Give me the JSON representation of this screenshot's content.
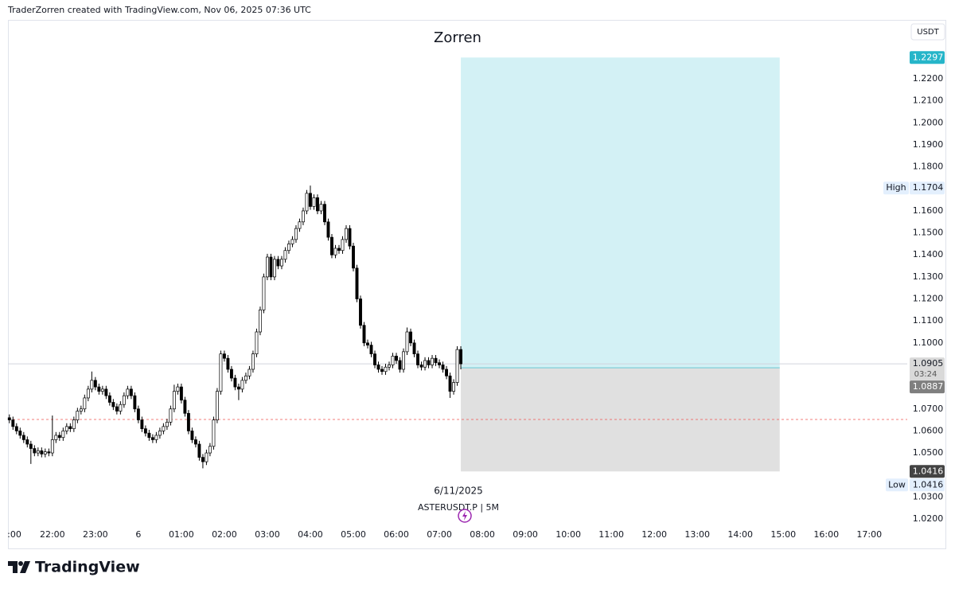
{
  "header": {
    "text": "TraderZorren created with TradingView.com, Nov 06, 2025 07:36 UTC"
  },
  "chart_data": {
    "type": "candlestick",
    "title": "Zorren",
    "currency": "USDT",
    "date_label": "6/11/2025",
    "symbol": "ASTERUSDT.P | 5M",
    "up_color": "#ffffff",
    "down_color": "#000000",
    "x": [
      -180,
      -175,
      -170,
      -165,
      -160,
      -155,
      -150,
      -145,
      -140,
      -135,
      -130,
      -125,
      -120,
      -115,
      -110,
      -105,
      -100,
      -95,
      -90,
      -85,
      -80,
      -75,
      -70,
      -65,
      -60,
      -55,
      -50,
      -45,
      -40,
      -35,
      -30,
      -25,
      -20,
      -15,
      -10,
      -5,
      0,
      5,
      10,
      15,
      20,
      25,
      30,
      35,
      40,
      45,
      50,
      55,
      60,
      65,
      70,
      75,
      80,
      85,
      90,
      95,
      100,
      105,
      110,
      115,
      120,
      125,
      130,
      135,
      140,
      145,
      150,
      155,
      160,
      165,
      170,
      175,
      180,
      185,
      190,
      195,
      200,
      205,
      210,
      215,
      220,
      225,
      230,
      235,
      240,
      245,
      250,
      255,
      260,
      265,
      270,
      275,
      280,
      285,
      290,
      295,
      300,
      305,
      310,
      315,
      320,
      325,
      330,
      335,
      340,
      345,
      350,
      355,
      360,
      365,
      370,
      375,
      380,
      385,
      390,
      395,
      400,
      405,
      410,
      415,
      420,
      425,
      430,
      435,
      440,
      445,
      450
    ],
    "candles": [
      [
        1.066,
        1.0675,
        1.0635,
        1.065
      ],
      [
        1.065,
        1.0665,
        1.0605,
        1.062
      ],
      [
        1.062,
        1.0635,
        1.0585,
        1.06
      ],
      [
        1.06,
        1.0615,
        1.0565,
        1.058
      ],
      [
        1.058,
        1.0595,
        1.0545,
        1.056
      ],
      [
        1.056,
        1.0575,
        1.0525,
        1.054
      ],
      [
        1.054,
        1.0555,
        1.045,
        1.052
      ],
      [
        1.052,
        1.0535,
        1.0485,
        1.05
      ],
      [
        1.05,
        1.0525,
        1.0485,
        1.051
      ],
      [
        1.051,
        1.0525,
        1.048,
        1.0495
      ],
      [
        1.0495,
        1.052,
        1.048,
        1.0505
      ],
      [
        1.0505,
        1.052,
        1.0485,
        1.05
      ],
      [
        1.05,
        1.067,
        1.0485,
        1.056
      ],
      [
        1.056,
        1.0595,
        1.0545,
        1.058
      ],
      [
        1.058,
        1.0595,
        1.0555,
        1.057
      ],
      [
        1.057,
        1.0615,
        1.0555,
        1.06
      ],
      [
        1.06,
        1.0635,
        1.0585,
        1.062
      ],
      [
        1.062,
        1.0635,
        1.0595,
        1.061
      ],
      [
        1.061,
        1.0665,
        1.0595,
        1.065
      ],
      [
        1.065,
        1.0705,
        1.0635,
        1.069
      ],
      [
        1.069,
        1.0715,
        1.0675,
        1.07
      ],
      [
        1.07,
        1.0765,
        1.0685,
        1.075
      ],
      [
        1.075,
        1.0805,
        1.0735,
        1.079
      ],
      [
        1.079,
        1.087,
        1.0775,
        1.083
      ],
      [
        1.083,
        1.0845,
        1.0785,
        1.08
      ],
      [
        1.08,
        1.0815,
        1.0765,
        1.078
      ],
      [
        1.078,
        1.0805,
        1.0765,
        1.079
      ],
      [
        1.079,
        1.0805,
        1.0745,
        1.076
      ],
      [
        1.076,
        1.0775,
        1.0715,
        1.073
      ],
      [
        1.073,
        1.0745,
        1.0695,
        1.071
      ],
      [
        1.071,
        1.0725,
        1.0675,
        1.069
      ],
      [
        1.069,
        1.0735,
        1.0675,
        1.072
      ],
      [
        1.072,
        1.0775,
        1.0705,
        1.076
      ],
      [
        1.076,
        1.0805,
        1.0745,
        1.079
      ],
      [
        1.079,
        1.0805,
        1.0745,
        1.076
      ],
      [
        1.076,
        1.0775,
        1.0685,
        1.07
      ],
      [
        1.07,
        1.0715,
        1.0635,
        1.065
      ],
      [
        1.065,
        1.0665,
        1.0595,
        1.061
      ],
      [
        1.061,
        1.0625,
        1.0575,
        1.059
      ],
      [
        1.059,
        1.0605,
        1.0555,
        1.057
      ],
      [
        1.057,
        1.0585,
        1.0545,
        1.056
      ],
      [
        1.056,
        1.0595,
        1.0545,
        1.058
      ],
      [
        1.058,
        1.0615,
        1.0565,
        1.06
      ],
      [
        1.06,
        1.0635,
        1.0585,
        1.062
      ],
      [
        1.062,
        1.0655,
        1.0605,
        1.064
      ],
      [
        1.064,
        1.0715,
        1.0625,
        1.07
      ],
      [
        1.07,
        1.081,
        1.0685,
        1.078
      ],
      [
        1.078,
        1.0815,
        1.0765,
        1.08
      ],
      [
        1.08,
        1.0815,
        1.0725,
        1.074
      ],
      [
        1.074,
        1.0755,
        1.0665,
        1.068
      ],
      [
        1.068,
        1.0695,
        1.0585,
        1.06
      ],
      [
        1.06,
        1.0615,
        1.0545,
        1.056
      ],
      [
        1.056,
        1.0575,
        1.0525,
        1.054
      ],
      [
        1.054,
        1.0555,
        1.0465,
        1.048
      ],
      [
        1.048,
        1.0495,
        1.043,
        1.046
      ],
      [
        1.046,
        1.0515,
        1.0445,
        1.05
      ],
      [
        1.05,
        1.0545,
        1.0485,
        1.053
      ],
      [
        1.053,
        1.0665,
        1.0515,
        1.065
      ],
      [
        1.065,
        1.0795,
        1.0635,
        1.078
      ],
      [
        1.078,
        1.0965,
        1.0765,
        1.095
      ],
      [
        1.095,
        1.0965,
        1.0915,
        1.093
      ],
      [
        1.093,
        1.0945,
        1.0865,
        1.088
      ],
      [
        1.088,
        1.0895,
        1.0825,
        1.084
      ],
      [
        1.084,
        1.0855,
        1.0785,
        1.08
      ],
      [
        1.08,
        1.0815,
        1.074,
        1.079
      ],
      [
        1.079,
        1.0845,
        1.0775,
        1.083
      ],
      [
        1.083,
        1.0865,
        1.0815,
        1.085
      ],
      [
        1.085,
        1.0895,
        1.0835,
        1.088
      ],
      [
        1.088,
        1.0965,
        1.0865,
        1.095
      ],
      [
        1.095,
        1.1065,
        1.0935,
        1.105
      ],
      [
        1.105,
        1.1165,
        1.1035,
        1.115
      ],
      [
        1.115,
        1.1315,
        1.1135,
        1.13
      ],
      [
        1.13,
        1.1405,
        1.1285,
        1.139
      ],
      [
        1.139,
        1.1405,
        1.1285,
        1.13
      ],
      [
        1.13,
        1.1395,
        1.1285,
        1.138
      ],
      [
        1.138,
        1.1395,
        1.1335,
        1.135
      ],
      [
        1.135,
        1.1395,
        1.1335,
        1.138
      ],
      [
        1.138,
        1.1435,
        1.1365,
        1.142
      ],
      [
        1.142,
        1.1465,
        1.1405,
        1.145
      ],
      [
        1.145,
        1.1485,
        1.1435,
        1.147
      ],
      [
        1.147,
        1.1535,
        1.1455,
        1.152
      ],
      [
        1.152,
        1.1565,
        1.1505,
        1.155
      ],
      [
        1.155,
        1.1615,
        1.1535,
        1.16
      ],
      [
        1.16,
        1.1695,
        1.1585,
        1.168
      ],
      [
        1.168,
        1.1715,
        1.1605,
        1.162
      ],
      [
        1.162,
        1.1675,
        1.1605,
        1.166
      ],
      [
        1.166,
        1.1675,
        1.1585,
        1.16
      ],
      [
        1.16,
        1.1645,
        1.1585,
        1.163
      ],
      [
        1.163,
        1.1645,
        1.1535,
        1.155
      ],
      [
        1.155,
        1.1565,
        1.1465,
        1.148
      ],
      [
        1.148,
        1.1495,
        1.1385,
        1.14
      ],
      [
        1.14,
        1.1445,
        1.1385,
        1.143
      ],
      [
        1.143,
        1.1445,
        1.1405,
        1.142
      ],
      [
        1.142,
        1.1485,
        1.1405,
        1.147
      ],
      [
        1.147,
        1.1535,
        1.1455,
        1.152
      ],
      [
        1.152,
        1.1535,
        1.1425,
        1.144
      ],
      [
        1.144,
        1.1455,
        1.1325,
        1.134
      ],
      [
        1.134,
        1.1355,
        1.1185,
        1.12
      ],
      [
        1.12,
        1.1215,
        1.1065,
        1.108
      ],
      [
        1.108,
        1.1095,
        1.0985,
        1.1
      ],
      [
        1.1,
        1.1015,
        1.0975,
        1.099
      ],
      [
        1.099,
        1.1005,
        1.0935,
        1.095
      ],
      [
        1.095,
        1.0965,
        1.0885,
        1.09
      ],
      [
        1.09,
        1.0915,
        1.0865,
        1.088
      ],
      [
        1.088,
        1.0895,
        1.0855,
        1.087
      ],
      [
        1.087,
        1.0905,
        1.0855,
        1.089
      ],
      [
        1.089,
        1.0915,
        1.0875,
        1.09
      ],
      [
        1.09,
        1.0955,
        1.0885,
        1.094
      ],
      [
        1.094,
        1.0955,
        1.0905,
        1.092
      ],
      [
        1.092,
        1.0935,
        1.0865,
        1.088
      ],
      [
        1.088,
        1.0975,
        1.0865,
        1.096
      ],
      [
        1.096,
        1.107,
        1.0945,
        1.105
      ],
      [
        1.105,
        1.1065,
        1.0985,
        1.1
      ],
      [
        1.1,
        1.1015,
        1.0935,
        1.095
      ],
      [
        1.095,
        1.0965,
        1.0885,
        1.09
      ],
      [
        1.09,
        1.0915,
        1.0875,
        1.089
      ],
      [
        1.089,
        1.0935,
        1.0875,
        1.092
      ],
      [
        1.092,
        1.0935,
        1.0885,
        1.09
      ],
      [
        1.09,
        1.0945,
        1.0885,
        1.093
      ],
      [
        1.093,
        1.0945,
        1.0895,
        1.091
      ],
      [
        1.091,
        1.0925,
        1.0885,
        1.09
      ],
      [
        1.09,
        1.0915,
        1.0865,
        1.088
      ],
      [
        1.088,
        1.0895,
        1.0835,
        1.085
      ],
      [
        1.085,
        1.0865,
        1.075,
        1.078
      ],
      [
        1.078,
        1.0835,
        1.0765,
        1.082
      ],
      [
        1.082,
        1.0985,
        1.0805,
        1.097
      ],
      [
        1.097,
        1.0985,
        1.088,
        1.0905
      ]
    ],
    "xlim": [
      -182,
      1073
    ],
    "xticks": [
      {
        "value": -180,
        "label": ":00"
      },
      {
        "value": -120,
        "label": "22:00"
      },
      {
        "value": -60,
        "label": "23:00"
      },
      {
        "value": 0,
        "label": "6"
      },
      {
        "value": 60,
        "label": "01:00"
      },
      {
        "value": 120,
        "label": "02:00"
      },
      {
        "value": 180,
        "label": "03:00"
      },
      {
        "value": 240,
        "label": "04:00"
      },
      {
        "value": 300,
        "label": "05:00"
      },
      {
        "value": 360,
        "label": "06:00"
      },
      {
        "value": 420,
        "label": "07:00"
      },
      {
        "value": 480,
        "label": "08:00"
      },
      {
        "value": 540,
        "label": "09:00"
      },
      {
        "value": 600,
        "label": "10:00"
      },
      {
        "value": 660,
        "label": "11:00"
      },
      {
        "value": 720,
        "label": "12:00"
      },
      {
        "value": 780,
        "label": "13:00"
      },
      {
        "value": 840,
        "label": "14:00"
      },
      {
        "value": 900,
        "label": "15:00"
      },
      {
        "value": 960,
        "label": "16:00"
      },
      {
        "value": 1020,
        "label": "17:00"
      }
    ],
    "ylim": [
      1.0171,
      1.2468
    ],
    "yticks": [
      {
        "value": 1.02,
        "label": "1.0200"
      },
      {
        "value": 1.03,
        "label": "1.0300"
      },
      {
        "value": 1.05,
        "label": "1.0500"
      },
      {
        "value": 1.06,
        "label": "1.0600"
      },
      {
        "value": 1.07,
        "label": "1.0700"
      },
      {
        "value": 1.1,
        "label": "1.1000"
      },
      {
        "value": 1.11,
        "label": "1.1100"
      },
      {
        "value": 1.12,
        "label": "1.1200"
      },
      {
        "value": 1.13,
        "label": "1.1300"
      },
      {
        "value": 1.14,
        "label": "1.1400"
      },
      {
        "value": 1.15,
        "label": "1.1500"
      },
      {
        "value": 1.16,
        "label": "1.1600"
      },
      {
        "value": 1.18,
        "label": "1.1800"
      },
      {
        "value": 1.19,
        "label": "1.1900"
      },
      {
        "value": 1.2,
        "label": "1.2000"
      },
      {
        "value": 1.21,
        "label": "1.2100"
      },
      {
        "value": 1.22,
        "label": "1.2200"
      }
    ],
    "last_price": 1.0905,
    "countdown": "03:24",
    "high_label": "High",
    "high": 1.1704,
    "low_label": "Low",
    "low": 1.0416,
    "reference_line": 1.0652,
    "position": {
      "entry": 1.0887,
      "target": 1.2297,
      "stop": 1.0416,
      "start": 450,
      "end": 895
    }
  },
  "footer": {
    "logo": "TradingView"
  }
}
